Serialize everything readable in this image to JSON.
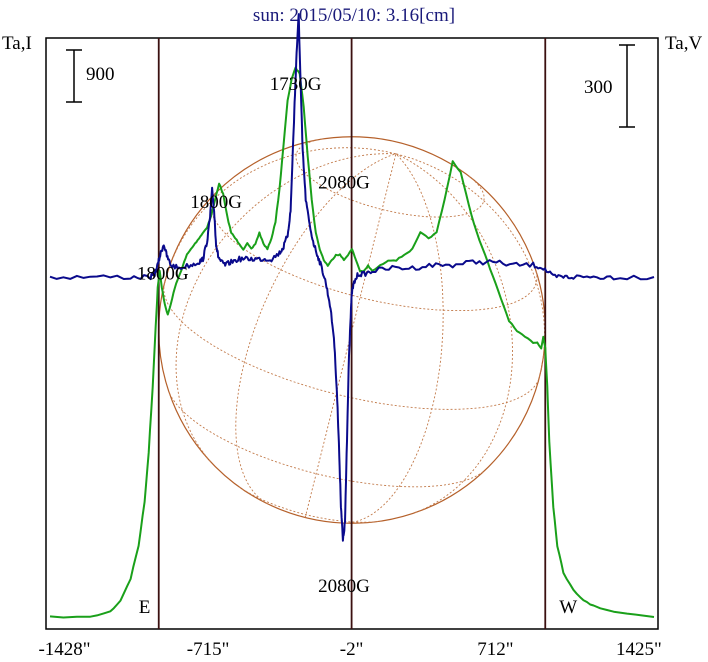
{
  "chart_data": {
    "type": "line",
    "title": "sun: 2015/05/10: 3.16[cm]",
    "ylabel_left": "Ta,I",
    "ylabel_right": "Ta,V",
    "scale_left": "900",
    "scale_right": "300",
    "xlim": [
      -1520,
      1520
    ],
    "x_ticks": [
      {
        "value": -1428,
        "label": "-1428\""
      },
      {
        "value": -715,
        "label": "-715\""
      },
      {
        "value": -2,
        "label": "-2\""
      },
      {
        "value": 712,
        "label": "712\""
      },
      {
        "value": 1425,
        "label": "1425\""
      }
    ],
    "markers": [
      {
        "x": -960,
        "label": "E"
      },
      {
        "x": -2,
        "label": ""
      },
      {
        "x": 960,
        "label": "W"
      }
    ],
    "disk_radius": 960,
    "annotations": [
      {
        "text": "1730G",
        "x": -280,
        "y": 0.96
      },
      {
        "text": "1800G",
        "x": -675,
        "y": 0.745
      },
      {
        "text": "1800G",
        "x": -940,
        "y": 0.615
      },
      {
        "text": "2080G",
        "x": -40,
        "y": 0.295
      },
      {
        "text": "2080G",
        "x": -40,
        "y": -0.27
      }
    ],
    "series": [
      {
        "label": "I",
        "color": "#1aa01a",
        "x": [
          -1500,
          -1300,
          -1200,
          -1150,
          -1100,
          -1060,
          -1030,
          -1010,
          -990,
          -975,
          -965,
          -955,
          -945,
          -930,
          -915,
          -900,
          -880,
          -860,
          -840,
          -820,
          -800,
          -780,
          -760,
          -740,
          -720,
          -700,
          -680,
          -660,
          -640,
          -620,
          -600,
          -580,
          -560,
          -540,
          -520,
          -500,
          -480,
          -460,
          -440,
          -420,
          -400,
          -380,
          -360,
          -340,
          -320,
          -300,
          -280,
          -260,
          -240,
          -220,
          -200,
          -180,
          -160,
          -140,
          -120,
          -100,
          -80,
          -60,
          -40,
          -20,
          0,
          20,
          40,
          60,
          80,
          100,
          140,
          180,
          220,
          260,
          300,
          340,
          380,
          420,
          460,
          500,
          540,
          580,
          620,
          660,
          700,
          740,
          780,
          820,
          860,
          900,
          920,
          940,
          950,
          960,
          970,
          980,
          1000,
          1020,
          1050,
          1100,
          1150,
          1200,
          1300,
          1500
        ],
        "y": [
          0.0,
          0.0,
          0.01,
          0.03,
          0.07,
          0.13,
          0.21,
          0.3,
          0.42,
          0.53,
          0.6,
          0.63,
          0.6,
          0.57,
          0.55,
          0.57,
          0.6,
          0.62,
          0.64,
          0.66,
          0.67,
          0.68,
          0.69,
          0.7,
          0.71,
          0.73,
          0.76,
          0.79,
          0.77,
          0.73,
          0.7,
          0.69,
          0.68,
          0.67,
          0.68,
          0.67,
          0.68,
          0.7,
          0.68,
          0.67,
          0.69,
          0.72,
          0.78,
          0.86,
          0.94,
          0.98,
          1.0,
          0.99,
          0.93,
          0.84,
          0.76,
          0.7,
          0.67,
          0.65,
          0.64,
          0.65,
          0.66,
          0.66,
          0.65,
          0.66,
          0.67,
          0.65,
          0.63,
          0.63,
          0.64,
          0.63,
          0.64,
          0.65,
          0.65,
          0.66,
          0.67,
          0.7,
          0.69,
          0.7,
          0.76,
          0.83,
          0.81,
          0.75,
          0.7,
          0.66,
          0.62,
          0.58,
          0.54,
          0.52,
          0.51,
          0.5,
          0.5,
          0.49,
          0.51,
          0.49,
          0.42,
          0.32,
          0.2,
          0.13,
          0.08,
          0.05,
          0.03,
          0.02,
          0.01,
          0.0
        ]
      },
      {
        "label": "V",
        "color": "#0a0a8c",
        "x": [
          -1500,
          -1300,
          -1100,
          -1000,
          -980,
          -965,
          -950,
          -935,
          -920,
          -900,
          -860,
          -800,
          -760,
          -740,
          -720,
          -705,
          -695,
          -685,
          -675,
          -665,
          -650,
          -630,
          -600,
          -560,
          -520,
          -480,
          -440,
          -400,
          -360,
          -340,
          -320,
          -305,
          -295,
          -285,
          -275,
          -265,
          -255,
          -245,
          -230,
          -210,
          -190,
          -170,
          -150,
          -130,
          -110,
          -90,
          -75,
          -65,
          -55,
          -45,
          -35,
          -25,
          -15,
          -5,
          0,
          10,
          30,
          60,
          100,
          200,
          300,
          400,
          500,
          600,
          700,
          800,
          900,
          950,
          1000,
          1050,
          1100,
          1200,
          1300,
          1500
        ],
        "y": [
          0.0,
          0.0,
          0.0,
          0.0,
          0.01,
          0.04,
          0.08,
          0.11,
          0.07,
          0.04,
          0.03,
          0.04,
          0.05,
          0.06,
          0.12,
          0.2,
          0.29,
          0.22,
          0.11,
          0.07,
          0.05,
          0.04,
          0.05,
          0.06,
          0.06,
          0.06,
          0.06,
          0.06,
          0.08,
          0.1,
          0.14,
          0.22,
          0.4,
          0.58,
          0.75,
          0.87,
          0.64,
          0.42,
          0.26,
          0.17,
          0.11,
          0.07,
          0.03,
          -0.02,
          -0.09,
          -0.2,
          -0.38,
          -0.56,
          -0.76,
          -0.88,
          -0.82,
          -0.55,
          -0.26,
          -0.1,
          -0.05,
          -0.02,
          0.01,
          0.01,
          0.02,
          0.03,
          0.03,
          0.04,
          0.04,
          0.05,
          0.05,
          0.04,
          0.04,
          0.03,
          0.0,
          0.0,
          0.0,
          0.0,
          0.0,
          0.0
        ]
      }
    ],
    "grid": false
  }
}
